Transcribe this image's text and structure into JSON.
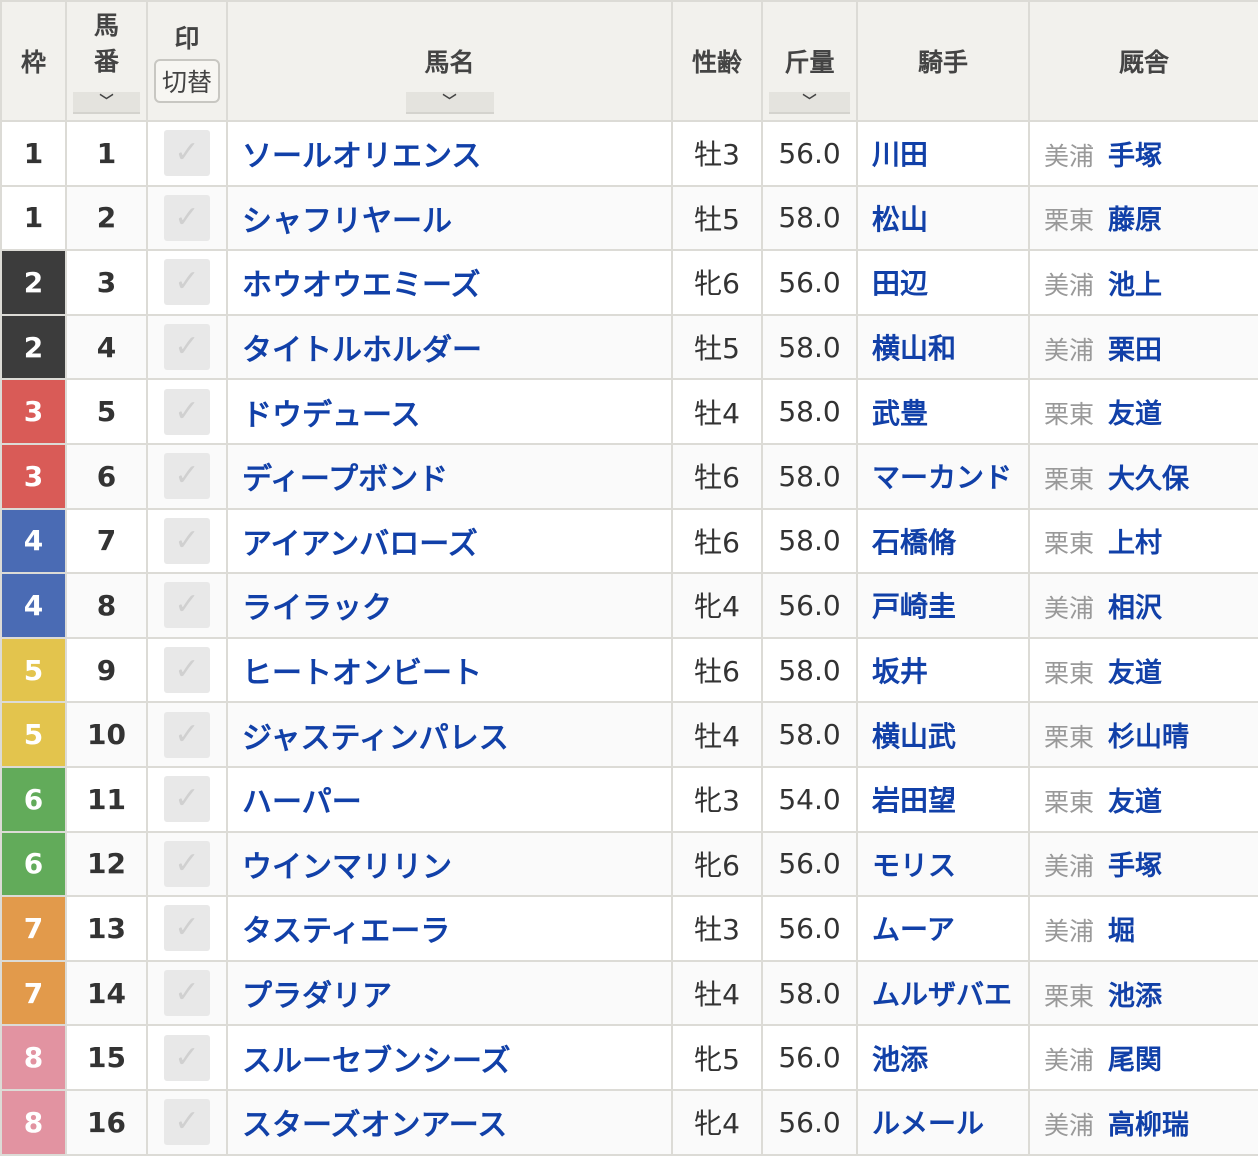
{
  "header": {
    "waku": "枠",
    "umaban": [
      "馬",
      "番"
    ],
    "mark": "印",
    "mark_switch": "切替",
    "name": "馬名",
    "sexage": "性齢",
    "weight": "斤量",
    "jockey": "騎手",
    "stable": "厩舎",
    "sort_icon": "chevron-down-icon"
  },
  "frame_colors": {
    "1": "#ffffff",
    "2": "#3c3c3c",
    "3": "#d95b57",
    "4": "#4a6bb4",
    "5": "#e3c44d",
    "6": "#62ab5a",
    "7": "#e29a4b",
    "8": "#e293a1"
  },
  "rows": [
    {
      "waku": "1",
      "num": "1",
      "name": "ソールオリエンス",
      "sexage": "牡3",
      "weight": "56.0",
      "jockey": "川田",
      "loc": "美浦",
      "trainer": "手塚"
    },
    {
      "waku": "1",
      "num": "2",
      "name": "シャフリヤール",
      "sexage": "牡5",
      "weight": "58.0",
      "jockey": "松山",
      "loc": "栗東",
      "trainer": "藤原"
    },
    {
      "waku": "2",
      "num": "3",
      "name": "ホウオウエミーズ",
      "sexage": "牝6",
      "weight": "56.0",
      "jockey": "田辺",
      "loc": "美浦",
      "trainer": "池上"
    },
    {
      "waku": "2",
      "num": "4",
      "name": "タイトルホルダー",
      "sexage": "牡5",
      "weight": "58.0",
      "jockey": "横山和",
      "loc": "美浦",
      "trainer": "栗田"
    },
    {
      "waku": "3",
      "num": "5",
      "name": "ドウデュース",
      "sexage": "牡4",
      "weight": "58.0",
      "jockey": "武豊",
      "loc": "栗東",
      "trainer": "友道"
    },
    {
      "waku": "3",
      "num": "6",
      "name": "ディープボンド",
      "sexage": "牡6",
      "weight": "58.0",
      "jockey": "マーカンド",
      "loc": "栗東",
      "trainer": "大久保"
    },
    {
      "waku": "4",
      "num": "7",
      "name": "アイアンバローズ",
      "sexage": "牡6",
      "weight": "58.0",
      "jockey": "石橋脩",
      "loc": "栗東",
      "trainer": "上村"
    },
    {
      "waku": "4",
      "num": "8",
      "name": "ライラック",
      "sexage": "牝4",
      "weight": "56.0",
      "jockey": "戸崎圭",
      "loc": "美浦",
      "trainer": "相沢"
    },
    {
      "waku": "5",
      "num": "9",
      "name": "ヒートオンビート",
      "sexage": "牡6",
      "weight": "58.0",
      "jockey": "坂井",
      "loc": "栗東",
      "trainer": "友道"
    },
    {
      "waku": "5",
      "num": "10",
      "name": "ジャスティンパレス",
      "sexage": "牡4",
      "weight": "58.0",
      "jockey": "横山武",
      "loc": "栗東",
      "trainer": "杉山晴"
    },
    {
      "waku": "6",
      "num": "11",
      "name": "ハーパー",
      "sexage": "牝3",
      "weight": "54.0",
      "jockey": "岩田望",
      "loc": "栗東",
      "trainer": "友道"
    },
    {
      "waku": "6",
      "num": "12",
      "name": "ウインマリリン",
      "sexage": "牝6",
      "weight": "56.0",
      "jockey": "モリス",
      "loc": "美浦",
      "trainer": "手塚"
    },
    {
      "waku": "7",
      "num": "13",
      "name": "タスティエーラ",
      "sexage": "牡3",
      "weight": "56.0",
      "jockey": "ムーア",
      "loc": "美浦",
      "trainer": "堀"
    },
    {
      "waku": "7",
      "num": "14",
      "name": "プラダリア",
      "sexage": "牡4",
      "weight": "58.0",
      "jockey": "ムルザバエ",
      "loc": "栗東",
      "trainer": "池添"
    },
    {
      "waku": "8",
      "num": "15",
      "name": "スルーセブンシーズ",
      "sexage": "牝5",
      "weight": "56.0",
      "jockey": "池添",
      "loc": "美浦",
      "trainer": "尾関"
    },
    {
      "waku": "8",
      "num": "16",
      "name": "スターズオンアース",
      "sexage": "牝4",
      "weight": "56.0",
      "jockey": "ルメール",
      "loc": "美浦",
      "trainer": "高柳瑞"
    }
  ]
}
